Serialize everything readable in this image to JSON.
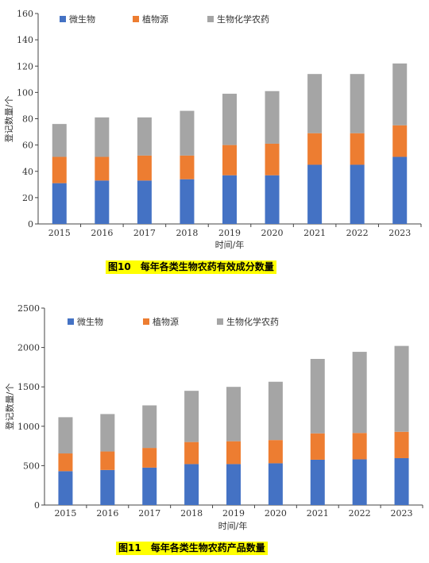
{
  "chart_data": [
    {
      "type": "bar",
      "stacked": true,
      "title": "图10　每年各类生物农药有效成分数量",
      "xlabel": "时间/年",
      "ylabel": "登记数量/个",
      "categories": [
        "2015",
        "2016",
        "2017",
        "2018",
        "2019",
        "2020",
        "2021",
        "2022",
        "2023"
      ],
      "ylim": [
        0,
        160
      ],
      "yticks": [
        0,
        20,
        40,
        60,
        80,
        100,
        120,
        140,
        160
      ],
      "legend_position": "top",
      "series": [
        {
          "name": "微生物",
          "color": "#4472C4",
          "values": [
            31,
            33,
            33,
            34,
            37,
            37,
            45,
            45,
            51
          ]
        },
        {
          "name": "植物源",
          "color": "#ED7D31",
          "values": [
            20,
            18,
            19,
            18,
            23,
            24,
            24,
            24,
            24
          ]
        },
        {
          "name": "生物化学农药",
          "color": "#A5A5A5",
          "values": [
            25,
            30,
            29,
            34,
            39,
            40,
            45,
            45,
            47
          ]
        }
      ]
    },
    {
      "type": "bar",
      "stacked": true,
      "title": "图11　每年各类生物农药产品数量",
      "xlabel": "时间/年",
      "ylabel": "登记数量/个",
      "categories": [
        "2015",
        "2016",
        "2017",
        "2018",
        "2019",
        "2020",
        "2021",
        "2022",
        "2023"
      ],
      "ylim": [
        0,
        2500
      ],
      "yticks": [
        0,
        500,
        1000,
        1500,
        2000,
        2500
      ],
      "legend_position": "top",
      "series": [
        {
          "name": "微生物",
          "color": "#4472C4",
          "values": [
            430,
            445,
            475,
            520,
            520,
            530,
            575,
            580,
            595
          ]
        },
        {
          "name": "植物源",
          "color": "#ED7D31",
          "values": [
            225,
            235,
            250,
            280,
            290,
            295,
            335,
            335,
            335
          ]
        },
        {
          "name": "生物化学农药",
          "color": "#A5A5A5",
          "values": [
            460,
            475,
            540,
            650,
            690,
            740,
            945,
            1030,
            1090
          ]
        }
      ]
    }
  ]
}
